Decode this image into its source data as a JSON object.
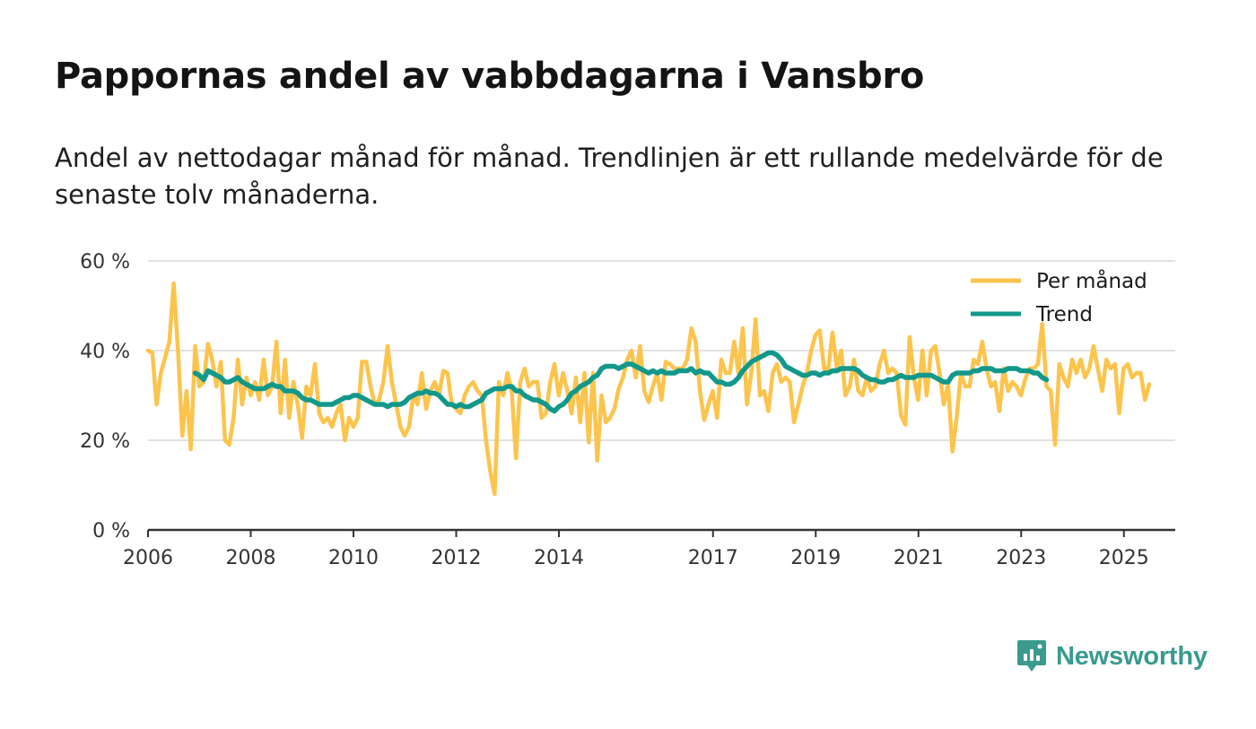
{
  "header": {
    "title": "Pappornas andel av vabbdagarna i Vansbro",
    "subtitle": "Andel av nettodagar månad för månad. Trendlinjen är ett rullande medelvärde för de senaste tolv månaderna."
  },
  "brand": {
    "name": "Newsworthy",
    "icon": "newsworthy-logo-icon",
    "color": "#3a9a8e"
  },
  "colors": {
    "monthly": "#fcc44d",
    "trend": "#12988a",
    "grid": "#d9d9d9",
    "axis": "#333333"
  },
  "chart_data": {
    "type": "line",
    "title": "Pappornas andel av vabbdagarna i Vansbro",
    "xlabel": "",
    "ylabel": "",
    "ylim": [
      0,
      60
    ],
    "xlim": [
      2006,
      2026
    ],
    "grid": true,
    "legend_position": "top-right",
    "y_ticks": [
      {
        "value": 0,
        "label": "0 %"
      },
      {
        "value": 20,
        "label": "20 %"
      },
      {
        "value": 40,
        "label": "40 %"
      },
      {
        "value": 60,
        "label": "60 %"
      }
    ],
    "x_ticks": [
      {
        "value": 2006,
        "label": "2006"
      },
      {
        "value": 2008,
        "label": "2008"
      },
      {
        "value": 2010,
        "label": "2010"
      },
      {
        "value": 2012,
        "label": "2012"
      },
      {
        "value": 2014,
        "label": "2014"
      },
      {
        "value": 2017,
        "label": "2017"
      },
      {
        "value": 2019,
        "label": "2019"
      },
      {
        "value": 2021,
        "label": "2021"
      },
      {
        "value": 2023,
        "label": "2023"
      },
      {
        "value": 2025,
        "label": "2025"
      }
    ],
    "series": [
      {
        "name": "Per månad",
        "start": 2006.0,
        "step": 0.0833,
        "values": [
          40,
          39.5,
          28,
          35,
          38.5,
          42,
          55,
          40,
          21,
          31,
          18,
          41,
          32,
          33,
          41.5,
          38,
          32,
          37.5,
          20,
          19,
          25,
          38,
          28,
          34,
          30,
          33,
          29,
          38,
          30,
          32,
          42,
          26,
          38,
          25,
          33,
          28,
          20.5,
          32,
          30,
          37,
          26,
          24,
          25,
          23,
          26,
          28,
          20,
          25,
          23,
          25,
          37.5,
          37.5,
          32,
          28,
          29,
          33,
          41,
          33,
          28,
          23,
          21,
          23,
          30,
          28,
          35,
          27,
          31,
          33,
          30,
          35.5,
          35,
          28,
          27,
          26,
          30,
          32,
          33,
          31,
          30,
          20,
          13,
          8,
          33,
          30,
          35,
          31,
          16,
          33,
          36,
          32,
          33,
          33,
          25,
          26,
          33,
          37,
          30,
          35,
          31,
          26,
          34,
          24,
          35,
          19.5,
          35,
          15.5,
          30,
          24,
          25,
          27,
          31.5,
          34,
          38,
          40,
          34,
          41,
          31,
          28.5,
          32,
          35,
          29,
          37.5,
          37,
          36,
          36,
          36,
          38,
          45,
          42,
          31,
          24.5,
          28,
          31,
          25,
          38,
          35,
          35,
          42,
          35,
          45,
          28,
          35,
          47,
          30,
          31,
          26.5,
          35,
          37,
          33,
          34,
          33,
          24,
          28,
          32,
          35,
          40,
          43.5,
          44.5,
          36,
          36,
          44,
          36,
          40,
          30,
          32,
          38,
          31,
          30,
          34,
          31,
          32,
          37,
          40,
          35,
          36,
          35,
          25.5,
          23.5,
          43,
          34,
          29,
          40,
          30,
          40,
          41,
          35,
          28,
          32.5,
          17.5,
          25,
          35,
          32,
          32,
          38,
          37,
          42,
          36,
          32,
          33,
          26.5,
          36,
          31,
          33,
          32,
          30,
          33.5,
          36,
          36,
          37,
          46,
          32,
          31,
          19,
          37,
          34,
          32,
          38,
          35,
          38,
          34,
          36,
          41,
          36,
          31,
          38,
          36,
          37,
          26,
          36,
          37,
          34,
          35,
          35,
          29,
          32.5
        ]
      },
      {
        "name": "Trend",
        "start": 2006.917,
        "step": 0.0833,
        "values": [
          35,
          34.5,
          33.5,
          35.5,
          35,
          34.5,
          34,
          33,
          33,
          33.5,
          34,
          33,
          32.5,
          32,
          31.5,
          31.5,
          31.5,
          32,
          32.5,
          32,
          32,
          31,
          31,
          31,
          30.5,
          29.5,
          29,
          29,
          28.5,
          28,
          28,
          28,
          28,
          28.5,
          29,
          29.5,
          29.5,
          30,
          30,
          29.5,
          29,
          28.5,
          28,
          28,
          28,
          27.5,
          28,
          28,
          28,
          28.5,
          29.5,
          30,
          30.5,
          30.5,
          31,
          30.5,
          30.5,
          30,
          29,
          28,
          28,
          27.5,
          28,
          27.5,
          27.5,
          28,
          28.5,
          29,
          30.5,
          31,
          31.5,
          31.5,
          31.5,
          32,
          32,
          31,
          31,
          30,
          29.5,
          29,
          29,
          28.5,
          28,
          27,
          26.5,
          27.5,
          28,
          29,
          30.5,
          31,
          32,
          32.5,
          33,
          34,
          34.5,
          36,
          36.5,
          36.5,
          36.5,
          36,
          36.5,
          37,
          37,
          36.5,
          36,
          35.5,
          35,
          35.5,
          35,
          35.5,
          35,
          35,
          35,
          35.5,
          35.5,
          35.5,
          36,
          35,
          35.5,
          35,
          35,
          34,
          33,
          33,
          32.5,
          32.5,
          33,
          34,
          35.5,
          36.5,
          37.5,
          38,
          38.5,
          39,
          39.5,
          39.5,
          39,
          38,
          36.5,
          36,
          35.5,
          35,
          34.5,
          34.5,
          35,
          35,
          34.5,
          35,
          35,
          35.5,
          35.5,
          36,
          36,
          36,
          36,
          35.5,
          34.5,
          34,
          33.5,
          33.5,
          33,
          33,
          33.5,
          33.5,
          34,
          34.5,
          34,
          34,
          34,
          34.5,
          34.5,
          34.5,
          34.5,
          34,
          33.5,
          33,
          33,
          34.5,
          35,
          35,
          35,
          35,
          35.5,
          35.5,
          36,
          36,
          36,
          35.5,
          35.5,
          35.5,
          36,
          36,
          36,
          35.5,
          35.5,
          35.5,
          35,
          35,
          34,
          33.5
        ]
      }
    ]
  }
}
